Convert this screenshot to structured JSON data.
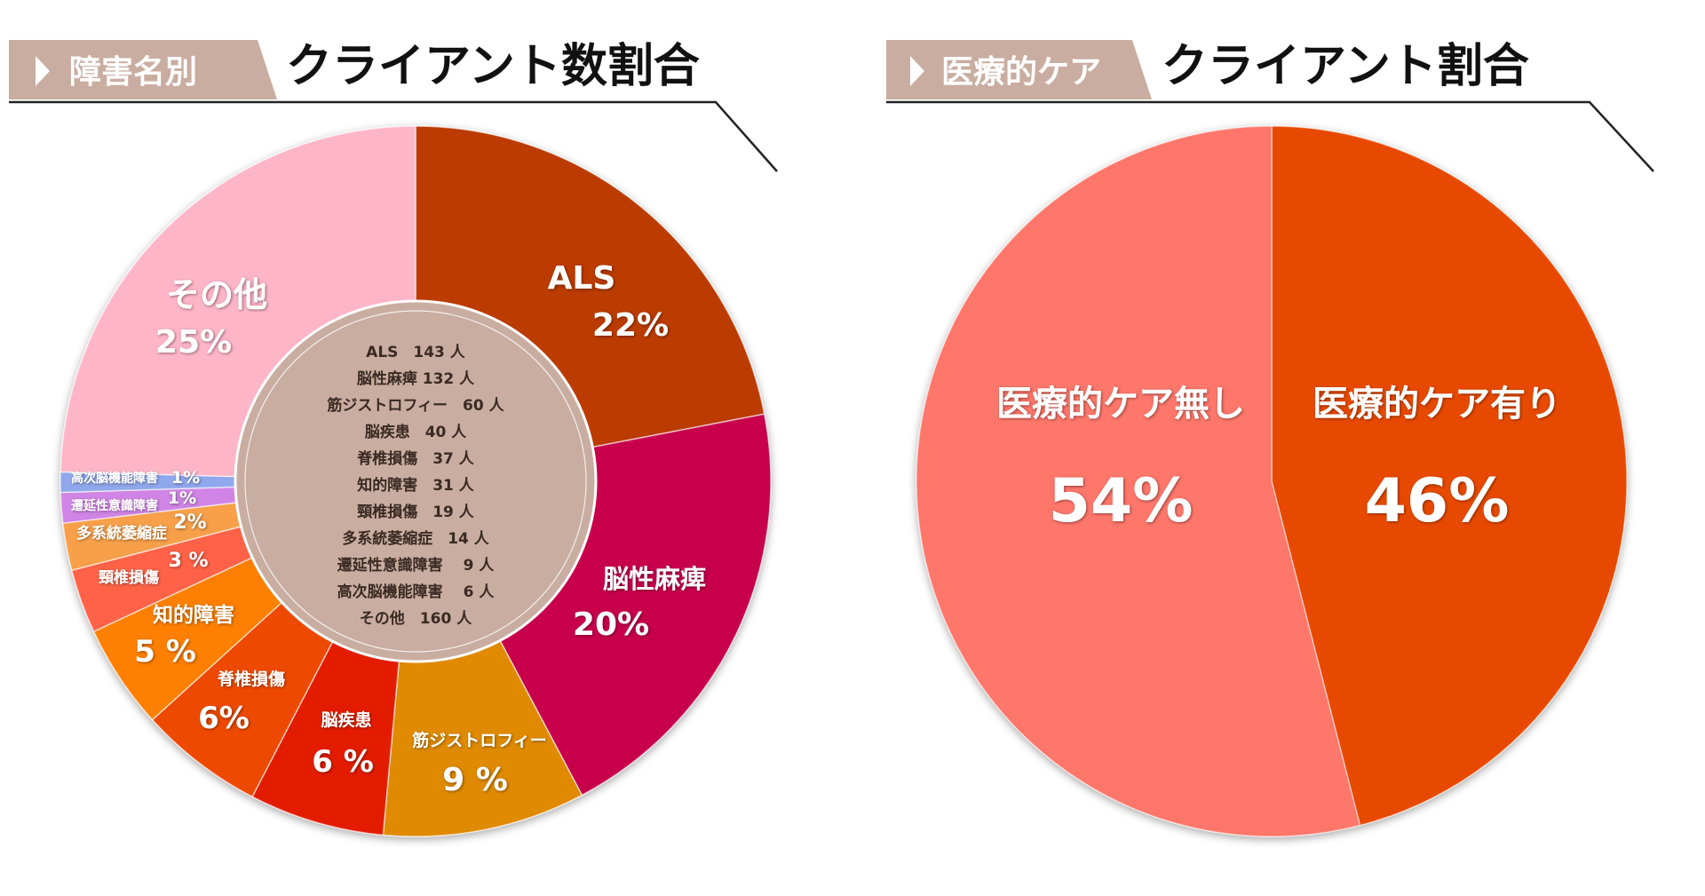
{
  "header_left": {
    "tag": "障害名別",
    "title": "クライアント数割合"
  },
  "header_right": {
    "tag": "医療的ケア",
    "title": "クライアント割合"
  },
  "colors": {
    "tag_bg": "#c9ada0",
    "tag_text": "#ffffff",
    "title_text": "#111111",
    "center_bg": "#c9ada0",
    "center_text": "#3a2a22",
    "rule_line": "#222222"
  },
  "center_list": [
    "ALS　143 人",
    "脳性麻痺 132 人",
    "筋ジストロフィー　60 人",
    "脳疾患　40 人",
    "脊椎損傷　37 人",
    "知的障害　31 人",
    "頸椎損傷　19 人",
    "多系統萎縮症　14 人",
    "遷延性意識障害　 9 人",
    "高次脳機能障害　 6 人",
    "その他　160 人"
  ],
  "chart_data": [
    {
      "type": "pie",
      "title": "障害名別 クライアント数割合",
      "donut": true,
      "slices": [
        {
          "name": "ALS",
          "value": 143,
          "percent_label": "22%",
          "color": "#bb3a00"
        },
        {
          "name": "脳性麻痺",
          "value": 132,
          "percent_label": "20%",
          "color": "#c8004c"
        },
        {
          "name": "筋ジストロフィー",
          "value": 60,
          "percent_label": "9 %",
          "color": "#df8a00"
        },
        {
          "name": "脳疾患",
          "value": 40,
          "percent_label": "6 %",
          "color": "#e31a00"
        },
        {
          "name": "脊椎損傷",
          "value": 37,
          "percent_label": "6%",
          "color": "#ee4a00"
        },
        {
          "name": "知的障害",
          "value": 31,
          "percent_label": "5 %",
          "color": "#ff8000"
        },
        {
          "name": "頸椎損傷",
          "value": 19,
          "percent_label": "3 %",
          "color": "#ff6247"
        },
        {
          "name": "多系統萎縮症",
          "value": 14,
          "percent_label": "2%",
          "color": "#f7a04a"
        },
        {
          "name": "遷延性意識障害",
          "value": 9,
          "percent_label": "1%",
          "color": "#d085e6"
        },
        {
          "name": "高次脳機能障害",
          "value": 6,
          "percent_label": "1%",
          "color": "#8fa8ec"
        },
        {
          "name": "その他",
          "value": 160,
          "percent_label": "25%",
          "color": "#ffb5c8"
        }
      ]
    },
    {
      "type": "pie",
      "title": "医療的ケア クライアント割合",
      "slices": [
        {
          "name": "医療的ケア有り",
          "value": 46,
          "percent_label": "46%",
          "color": "#e84a00"
        },
        {
          "name": "医療的ケア無し",
          "value": 54,
          "percent_label": "54%",
          "color": "#ff766b"
        }
      ]
    }
  ]
}
